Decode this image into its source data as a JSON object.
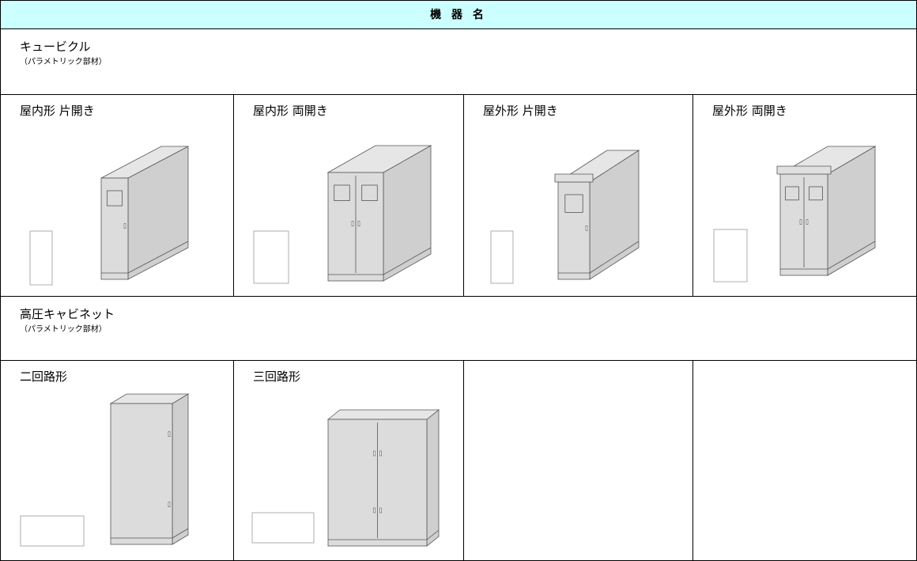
{
  "header": {
    "title": "機 器 名"
  },
  "sections": [
    {
      "title": "キュービクル",
      "note": "（パラメトリック部材）",
      "items": [
        "屋内形 片開き",
        "屋内形 両開き",
        "屋外形 片開き",
        "屋外形 両開き"
      ]
    },
    {
      "title": "高圧キャビネット",
      "note": "（パラメトリック部材）",
      "items": [
        "二回路形",
        "三回路形"
      ]
    }
  ]
}
